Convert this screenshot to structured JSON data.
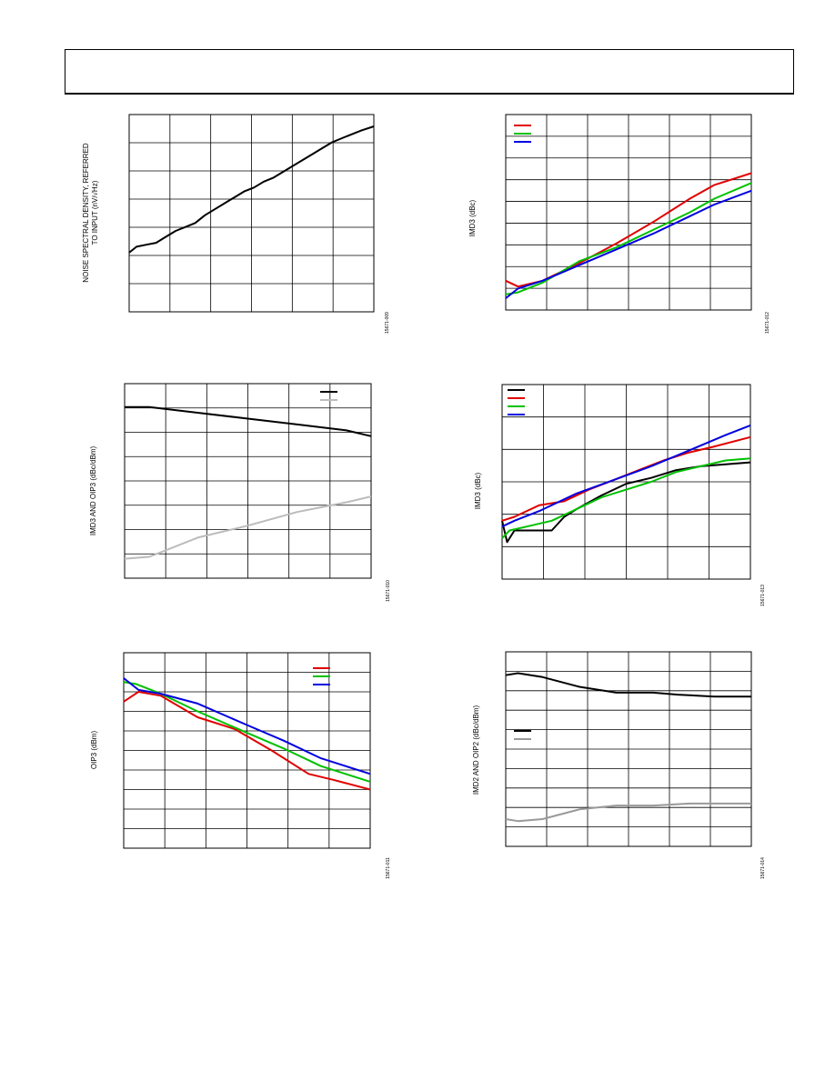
{
  "page": {
    "header_title": ""
  },
  "charts": [
    {
      "id": "c1",
      "ylabel_lines": [
        "NOISE SPECTRAL DENSITY, REFERRED",
        "TO INPUT (nV/√Hz)"
      ],
      "fig_id": "15671-009",
      "nx": 6,
      "ny": 7,
      "legend": [],
      "series": [
        {
          "color": "#000000",
          "pts": [
            [
              0,
              0.3
            ],
            [
              0.03,
              0.33
            ],
            [
              0.07,
              0.34
            ],
            [
              0.11,
              0.35
            ],
            [
              0.15,
              0.38
            ],
            [
              0.19,
              0.41
            ],
            [
              0.23,
              0.43
            ],
            [
              0.27,
              0.45
            ],
            [
              0.31,
              0.49
            ],
            [
              0.35,
              0.52
            ],
            [
              0.39,
              0.55
            ],
            [
              0.43,
              0.58
            ],
            [
              0.47,
              0.61
            ],
            [
              0.51,
              0.63
            ],
            [
              0.55,
              0.66
            ],
            [
              0.59,
              0.68
            ],
            [
              0.63,
              0.71
            ],
            [
              0.67,
              0.74
            ],
            [
              0.71,
              0.77
            ],
            [
              0.75,
              0.8
            ],
            [
              0.79,
              0.83
            ],
            [
              0.83,
              0.86
            ],
            [
              0.87,
              0.88
            ],
            [
              0.91,
              0.9
            ],
            [
              0.95,
              0.92
            ],
            [
              1.0,
              0.94
            ]
          ]
        }
      ]
    },
    {
      "id": "c2",
      "ylabel_lines": [
        "IMD3 (dBc)"
      ],
      "fig_id": "15671-012",
      "nx": 6,
      "ny": 9,
      "legend": [
        "#e00000",
        "#00c000",
        "#0000e0"
      ],
      "series": [
        {
          "color": "#e00000",
          "pts": [
            [
              0,
              0.15
            ],
            [
              0.05,
              0.12
            ],
            [
              0.15,
              0.15
            ],
            [
              0.3,
              0.24
            ],
            [
              0.45,
              0.34
            ],
            [
              0.6,
              0.45
            ],
            [
              0.75,
              0.57
            ],
            [
              0.85,
              0.64
            ],
            [
              1.0,
              0.7
            ]
          ]
        },
        {
          "color": "#00c000",
          "pts": [
            [
              0,
              0.08
            ],
            [
              0.05,
              0.09
            ],
            [
              0.15,
              0.14
            ],
            [
              0.3,
              0.25
            ],
            [
              0.45,
              0.32
            ],
            [
              0.6,
              0.41
            ],
            [
              0.75,
              0.5
            ],
            [
              0.85,
              0.57
            ],
            [
              1.0,
              0.65
            ]
          ]
        },
        {
          "color": "#0000e0",
          "pts": [
            [
              0,
              0.06
            ],
            [
              0.05,
              0.11
            ],
            [
              0.15,
              0.15
            ],
            [
              0.3,
              0.23
            ],
            [
              0.45,
              0.31
            ],
            [
              0.6,
              0.39
            ],
            [
              0.75,
              0.48
            ],
            [
              0.85,
              0.54
            ],
            [
              1.0,
              0.61
            ]
          ]
        }
      ]
    },
    {
      "id": "c3",
      "ylabel_lines": [
        "IMD3 AND OIP3 (dBc/dBm)"
      ],
      "fig_id": "15671-010",
      "nx": 6,
      "ny": 8,
      "legend": [
        "#000000",
        "#bbbbbb"
      ],
      "series": [
        {
          "color": "#000000",
          "pts": [
            [
              0,
              0.88
            ],
            [
              0.1,
              0.88
            ],
            [
              0.3,
              0.85
            ],
            [
              0.5,
              0.82
            ],
            [
              0.7,
              0.79
            ],
            [
              0.9,
              0.76
            ],
            [
              1.0,
              0.73
            ]
          ]
        },
        {
          "color": "#bbbbbb",
          "pts": [
            [
              0,
              0.1
            ],
            [
              0.1,
              0.11
            ],
            [
              0.3,
              0.21
            ],
            [
              0.5,
              0.27
            ],
            [
              0.7,
              0.34
            ],
            [
              0.9,
              0.39
            ],
            [
              1.0,
              0.42
            ]
          ]
        }
      ]
    },
    {
      "id": "c4",
      "ylabel_lines": [
        "IMD3 (dBc)"
      ],
      "fig_id": "15671-013",
      "nx": 6,
      "ny": 6,
      "legend": [
        "#000000",
        "#e00000",
        "#00c000",
        "#0000e0"
      ],
      "series": [
        {
          "color": "#000000",
          "pts": [
            [
              0,
              0.3
            ],
            [
              0.02,
              0.19
            ],
            [
              0.05,
              0.25
            ],
            [
              0.1,
              0.25
            ],
            [
              0.2,
              0.25
            ],
            [
              0.25,
              0.32
            ],
            [
              0.3,
              0.36
            ],
            [
              0.4,
              0.43
            ],
            [
              0.5,
              0.49
            ],
            [
              0.6,
              0.52
            ],
            [
              0.7,
              0.56
            ],
            [
              0.8,
              0.58
            ],
            [
              0.9,
              0.59
            ],
            [
              1.0,
              0.6
            ]
          ]
        },
        {
          "color": "#e00000",
          "pts": [
            [
              0,
              0.3
            ],
            [
              0.05,
              0.32
            ],
            [
              0.15,
              0.38
            ],
            [
              0.25,
              0.4
            ],
            [
              0.35,
              0.46
            ],
            [
              0.45,
              0.51
            ],
            [
              0.55,
              0.56
            ],
            [
              0.65,
              0.61
            ],
            [
              0.75,
              0.65
            ],
            [
              0.85,
              0.68
            ],
            [
              1.0,
              0.73
            ]
          ]
        },
        {
          "color": "#00c000",
          "pts": [
            [
              0,
              0.21
            ],
            [
              0.03,
              0.25
            ],
            [
              0.1,
              0.27
            ],
            [
              0.2,
              0.3
            ],
            [
              0.3,
              0.36
            ],
            [
              0.4,
              0.42
            ],
            [
              0.5,
              0.46
            ],
            [
              0.6,
              0.5
            ],
            [
              0.7,
              0.55
            ],
            [
              0.8,
              0.58
            ],
            [
              0.9,
              0.61
            ],
            [
              1.0,
              0.62
            ]
          ]
        },
        {
          "color": "#0000e0",
          "pts": [
            [
              0,
              0.27
            ],
            [
              0.05,
              0.3
            ],
            [
              0.15,
              0.35
            ],
            [
              0.3,
              0.44
            ],
            [
              0.45,
              0.51
            ],
            [
              0.6,
              0.58
            ],
            [
              0.75,
              0.66
            ],
            [
              0.9,
              0.74
            ],
            [
              1.0,
              0.79
            ]
          ]
        }
      ]
    },
    {
      "id": "c5",
      "ylabel_lines": [
        "OIP3 (dBm)"
      ],
      "fig_id": "15671-011",
      "nx": 6,
      "ny": 10,
      "legend": [
        "#e00000",
        "#00c000",
        "#0000e0"
      ],
      "series": [
        {
          "color": "#e00000",
          "pts": [
            [
              0,
              0.75
            ],
            [
              0.06,
              0.8
            ],
            [
              0.15,
              0.78
            ],
            [
              0.3,
              0.67
            ],
            [
              0.45,
              0.61
            ],
            [
              0.6,
              0.5
            ],
            [
              0.75,
              0.38
            ],
            [
              0.85,
              0.35
            ],
            [
              1.0,
              0.3
            ]
          ]
        },
        {
          "color": "#00c000",
          "pts": [
            [
              0,
              0.85
            ],
            [
              0.05,
              0.84
            ],
            [
              0.15,
              0.79
            ],
            [
              0.3,
              0.7
            ],
            [
              0.5,
              0.59
            ],
            [
              0.65,
              0.51
            ],
            [
              0.8,
              0.42
            ],
            [
              0.9,
              0.38
            ],
            [
              1.0,
              0.34
            ]
          ]
        },
        {
          "color": "#0000e0",
          "pts": [
            [
              0,
              0.87
            ],
            [
              0.06,
              0.81
            ],
            [
              0.15,
              0.79
            ],
            [
              0.3,
              0.74
            ],
            [
              0.5,
              0.63
            ],
            [
              0.65,
              0.55
            ],
            [
              0.8,
              0.46
            ],
            [
              0.9,
              0.42
            ],
            [
              1.0,
              0.38
            ]
          ]
        }
      ]
    },
    {
      "id": "c6",
      "ylabel_lines": [
        "IMD2 AND OIP2 (dBc/dBm)"
      ],
      "fig_id": "15671-014",
      "nx": 6,
      "ny": 10,
      "legend": [
        "#000000",
        "#999999"
      ],
      "series": [
        {
          "color": "#000000",
          "pts": [
            [
              0,
              0.88
            ],
            [
              0.05,
              0.89
            ],
            [
              0.15,
              0.87
            ],
            [
              0.3,
              0.82
            ],
            [
              0.45,
              0.79
            ],
            [
              0.6,
              0.79
            ],
            [
              0.7,
              0.78
            ],
            [
              0.85,
              0.77
            ],
            [
              1.0,
              0.77
            ]
          ]
        },
        {
          "color": "#999999",
          "pts": [
            [
              0,
              0.14
            ],
            [
              0.05,
              0.13
            ],
            [
              0.15,
              0.14
            ],
            [
              0.3,
              0.19
            ],
            [
              0.45,
              0.21
            ],
            [
              0.6,
              0.21
            ],
            [
              0.75,
              0.22
            ],
            [
              0.85,
              0.22
            ],
            [
              1.0,
              0.22
            ]
          ]
        }
      ]
    }
  ]
}
